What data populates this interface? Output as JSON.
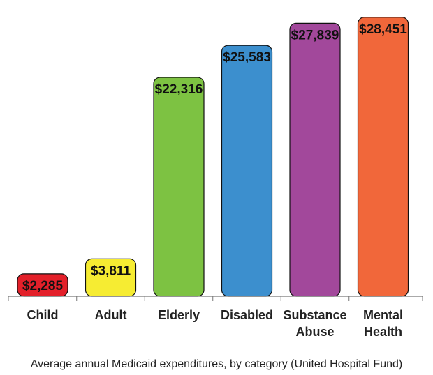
{
  "caption": "Average annual Medicaid expenditures, by category (United Hospital Fund)",
  "chart_data": {
    "type": "bar",
    "categories": [
      [
        "Child"
      ],
      [
        "Adult"
      ],
      [
        "Elderly"
      ],
      [
        "Disabled"
      ],
      [
        "Substance",
        "Abuse"
      ],
      [
        "Mental",
        "Health"
      ]
    ],
    "values": [
      2285,
      3811,
      22316,
      25583,
      27839,
      28451
    ],
    "value_labels": [
      "$2,285",
      "$3,811",
      "$22,316",
      "$25,583",
      "$27,839",
      "$28,451"
    ],
    "colors": [
      "#e3202a",
      "#f6ec32",
      "#7dc242",
      "#3c8fce",
      "#a2489b",
      "#f1673a"
    ],
    "title": "",
    "xlabel": "",
    "ylabel": "",
    "ylim": [
      0,
      29500
    ],
    "grid": false,
    "legend": "none"
  }
}
